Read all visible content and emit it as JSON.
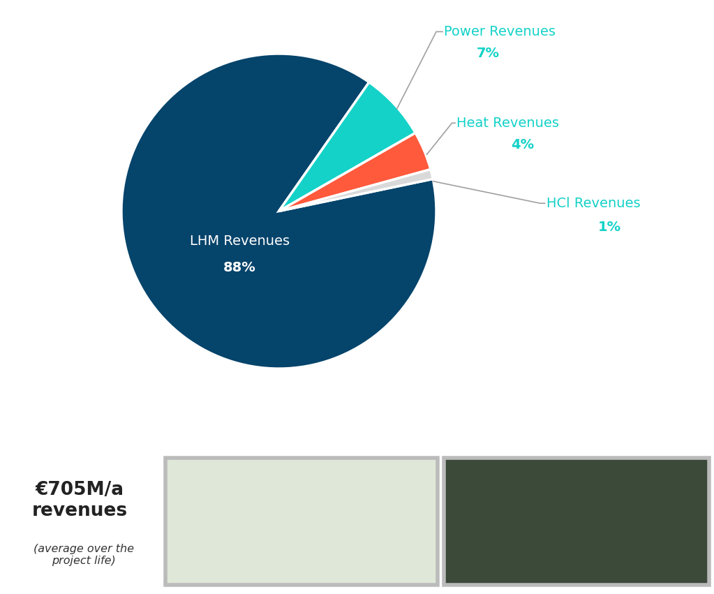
{
  "chart_data": {
    "type": "pie",
    "categories": [
      "LHM Revenues",
      "Power Revenues",
      "Heat Revenues",
      "HCl Revenues"
    ],
    "values": [
      88,
      7,
      4,
      1
    ],
    "value_labels": [
      "88%",
      "7%",
      "4%",
      "1%"
    ],
    "data_labels": true,
    "colors": [
      "#05446b",
      "#14d2c8",
      "#ff5a3c",
      "#d9d9d9"
    ],
    "annotations": [
      "€705M/a\nrevenues",
      "(average over the\nproject life)"
    ]
  }
}
